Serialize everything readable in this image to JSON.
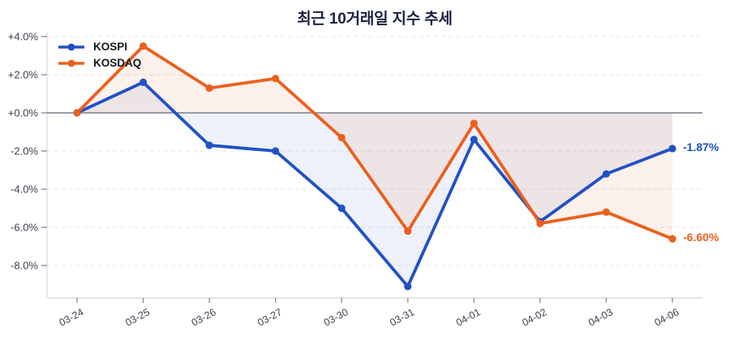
{
  "chart_data": {
    "type": "line",
    "title": "최근 10거래일 지수 추세",
    "x": [
      "03-24",
      "03-25",
      "03-26",
      "03-27",
      "03-30",
      "03-31",
      "04-01",
      "04-02",
      "04-03",
      "04-06"
    ],
    "series": [
      {
        "name": "KOSPI",
        "color": "#2151c4",
        "fill": "rgba(33,81,196,0.08)",
        "values": [
          0.0,
          1.6,
          -1.7,
          -2.0,
          -5.0,
          -9.1,
          -1.4,
          -5.7,
          -3.2,
          -1.87
        ]
      },
      {
        "name": "KOSDAQ",
        "color": "#ec5f1d",
        "fill": "rgba(236,95,29,0.09)",
        "values": [
          0.0,
          3.5,
          1.3,
          1.8,
          -1.3,
          -6.2,
          -0.55,
          -5.8,
          -5.2,
          -6.6
        ]
      }
    ],
    "yticks": {
      "values": [
        4,
        2,
        0,
        -2,
        -4,
        -6,
        -8
      ],
      "labels": [
        "+4.0%",
        "+2.0%",
        "+0.0%",
        "-2.0%",
        "-4.0%",
        "-6.0%",
        "-8.0%"
      ]
    },
    "ylim": [
      -9.7,
      4.2
    ],
    "grid": "horizontal-dashed",
    "baseline": 0,
    "area_fill": true,
    "legend_position": "top-left",
    "annotations": [
      {
        "series": "KOSPI",
        "text": "-1.87%",
        "value": -1.87
      },
      {
        "series": "KOSDAQ",
        "text": "-6.60%",
        "value": -6.6
      }
    ]
  }
}
